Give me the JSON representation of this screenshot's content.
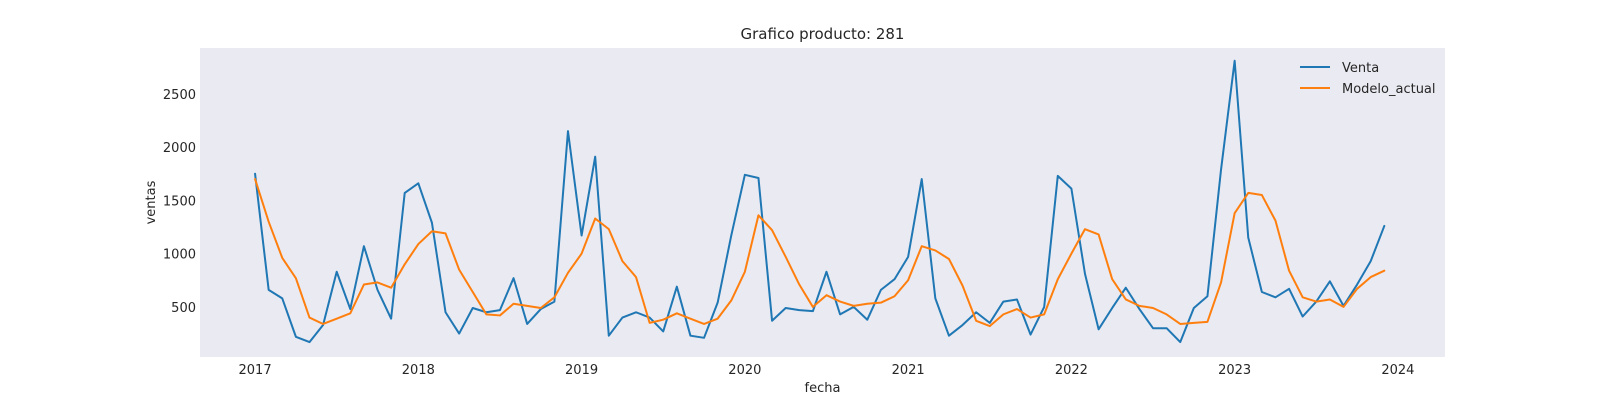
{
  "chart_data": {
    "type": "line",
    "title": "Grafico producto: 281",
    "xlabel": "fecha",
    "ylabel": "ventas",
    "x_tick_labels": [
      "2017",
      "2018",
      "2019",
      "2020",
      "2021",
      "2022",
      "2023",
      "2024"
    ],
    "y_ticks": [
      500,
      1000,
      1500,
      2000,
      2500
    ],
    "y_tick_labels": [
      "500",
      "1000",
      "1500",
      "2000",
      "2500"
    ],
    "ylim": [
      30,
      2930
    ],
    "xlim": [
      "2016-08-30",
      "2024-04-15"
    ],
    "grid": false,
    "legend_position": "top-right",
    "background_color": "#eaeaf2",
    "x": [
      "2017-01",
      "2017-02",
      "2017-03",
      "2017-04",
      "2017-05",
      "2017-06",
      "2017-07",
      "2017-08",
      "2017-09",
      "2017-10",
      "2017-11",
      "2017-12",
      "2018-01",
      "2018-02",
      "2018-03",
      "2018-04",
      "2018-05",
      "2018-06",
      "2018-07",
      "2018-08",
      "2018-09",
      "2018-10",
      "2018-11",
      "2018-12",
      "2019-01",
      "2019-02",
      "2019-03",
      "2019-04",
      "2019-05",
      "2019-06",
      "2019-07",
      "2019-08",
      "2019-09",
      "2019-10",
      "2019-11",
      "2019-12",
      "2020-01",
      "2020-02",
      "2020-03",
      "2020-04",
      "2020-05",
      "2020-06",
      "2020-07",
      "2020-08",
      "2020-09",
      "2020-10",
      "2020-11",
      "2020-12",
      "2021-01",
      "2021-02",
      "2021-03",
      "2021-04",
      "2021-05",
      "2021-06",
      "2021-07",
      "2021-08",
      "2021-09",
      "2021-10",
      "2021-11",
      "2021-12",
      "2022-01",
      "2022-02",
      "2022-03",
      "2022-04",
      "2022-05",
      "2022-06",
      "2022-07",
      "2022-08",
      "2022-09",
      "2022-10",
      "2022-11",
      "2022-12",
      "2023-01",
      "2023-02",
      "2023-03",
      "2023-04",
      "2023-05",
      "2023-06",
      "2023-07",
      "2023-08",
      "2023-09",
      "2023-10",
      "2023-11",
      "2023-12"
    ],
    "series": [
      {
        "name": "Venta",
        "color": "#1f77b4",
        "values": [
          1750,
          660,
          580,
          220,
          170,
          330,
          830,
          480,
          1070,
          660,
          390,
          1570,
          1660,
          1290,
          450,
          250,
          490,
          450,
          470,
          770,
          340,
          480,
          550,
          2150,
          1170,
          1910,
          230,
          400,
          450,
          400,
          270,
          690,
          230,
          210,
          540,
          1170,
          1740,
          1710,
          370,
          490,
          470,
          460,
          830,
          430,
          500,
          380,
          660,
          760,
          970,
          1700,
          580,
          230,
          330,
          450,
          350,
          550,
          570,
          240,
          500,
          1730,
          1610,
          810,
          290,
          490,
          680,
          480,
          300,
          300,
          170,
          490,
          600,
          1790,
          2810,
          1150,
          640,
          590,
          670,
          410,
          550,
          740,
          510,
          710,
          930,
          1260
        ]
      },
      {
        "name": "Modelo_actual",
        "color": "#ff7f0e",
        "values": [
          1700,
          1300,
          960,
          770,
          400,
          340,
          390,
          440,
          710,
          730,
          680,
          900,
          1090,
          1210,
          1190,
          850,
          640,
          430,
          420,
          530,
          510,
          490,
          590,
          820,
          1000,
          1330,
          1230,
          930,
          780,
          350,
          380,
          440,
          390,
          340,
          390,
          560,
          830,
          1360,
          1220,
          970,
          710,
          500,
          610,
          550,
          510,
          530,
          540,
          600,
          750,
          1070,
          1030,
          950,
          700,
          370,
          320,
          430,
          480,
          400,
          430,
          760,
          1000,
          1230,
          1180,
          760,
          570,
          510,
          490,
          430,
          340,
          350,
          360,
          730,
          1380,
          1570,
          1550,
          1310,
          840,
          590,
          550,
          570,
          500,
          670,
          780,
          840
        ]
      }
    ]
  }
}
